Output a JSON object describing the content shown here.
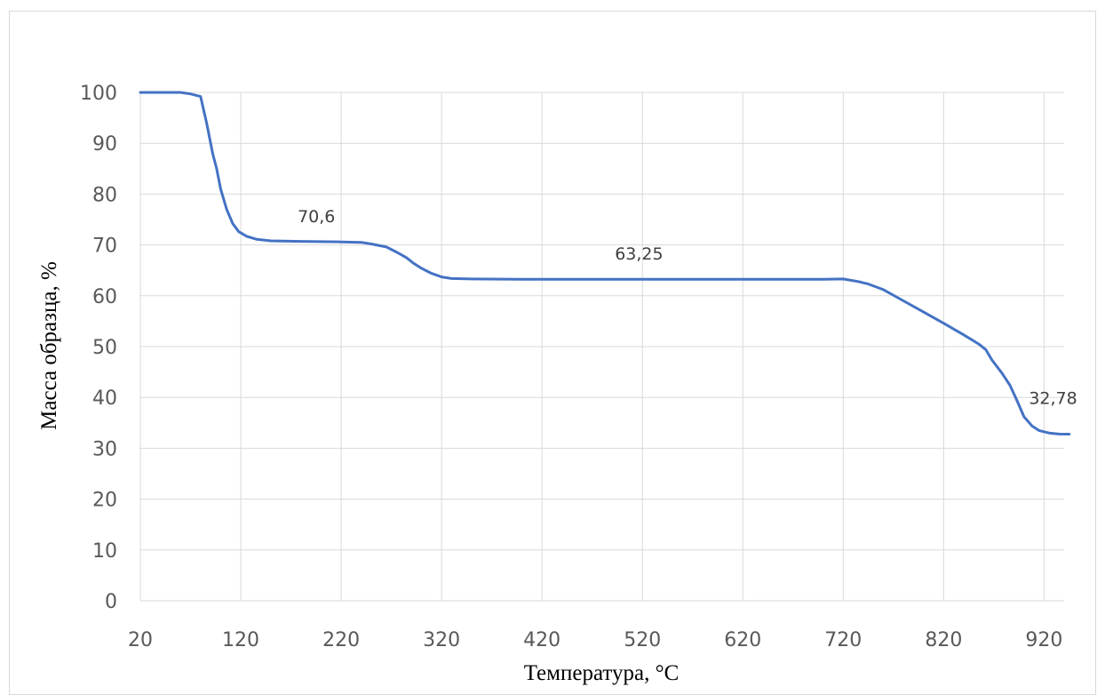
{
  "chart_data": {
    "type": "line",
    "title": "",
    "xlabel": "Температура, °C",
    "ylabel": "Масса образца, %",
    "xlim": [
      20,
      940
    ],
    "ylim": [
      0,
      100
    ],
    "xticks": [
      20,
      120,
      220,
      320,
      420,
      520,
      620,
      720,
      820,
      920
    ],
    "yticks": [
      0,
      10,
      20,
      30,
      40,
      50,
      60,
      70,
      80,
      90,
      100
    ],
    "grid": true,
    "legend": "none",
    "series": [
      {
        "color": "#4472c4",
        "points": [
          [
            20,
            100
          ],
          [
            40,
            100
          ],
          [
            60,
            100
          ],
          [
            70,
            99.7
          ],
          [
            80,
            99.2
          ],
          [
            86,
            94
          ],
          [
            92,
            88
          ],
          [
            96,
            85
          ],
          [
            100,
            81
          ],
          [
            106,
            77
          ],
          [
            112,
            74.2
          ],
          [
            118,
            72.6
          ],
          [
            126,
            71.7
          ],
          [
            136,
            71.1
          ],
          [
            150,
            70.8
          ],
          [
            180,
            70.7
          ],
          [
            220,
            70.6
          ],
          [
            240,
            70.5
          ],
          [
            250,
            70.2
          ],
          [
            265,
            69.6
          ],
          [
            275,
            68.6
          ],
          [
            285,
            67.5
          ],
          [
            292,
            66.4
          ],
          [
            300,
            65.4
          ],
          [
            310,
            64.4
          ],
          [
            320,
            63.7
          ],
          [
            330,
            63.4
          ],
          [
            350,
            63.3
          ],
          [
            400,
            63.25
          ],
          [
            520,
            63.25
          ],
          [
            640,
            63.25
          ],
          [
            700,
            63.25
          ],
          [
            720,
            63.3
          ],
          [
            735,
            62.8
          ],
          [
            745,
            62.3
          ],
          [
            760,
            61.2
          ],
          [
            780,
            59.0
          ],
          [
            800,
            56.8
          ],
          [
            820,
            54.6
          ],
          [
            840,
            52.3
          ],
          [
            855,
            50.5
          ],
          [
            862,
            49.4
          ],
          [
            868,
            47.4
          ],
          [
            878,
            44.8
          ],
          [
            886,
            42.4
          ],
          [
            893,
            39.4
          ],
          [
            900,
            36.2
          ],
          [
            908,
            34.4
          ],
          [
            915,
            33.5
          ],
          [
            925,
            33.0
          ],
          [
            935,
            32.8
          ],
          [
            945,
            32.78
          ]
        ]
      }
    ],
    "annotations": [
      {
        "x": 220,
        "y": 70.6,
        "text": "70,6"
      },
      {
        "x": 520,
        "y": 63.25,
        "text": "63,25"
      },
      {
        "x": 935,
        "y": 32.78,
        "text": "32,78"
      }
    ]
  }
}
